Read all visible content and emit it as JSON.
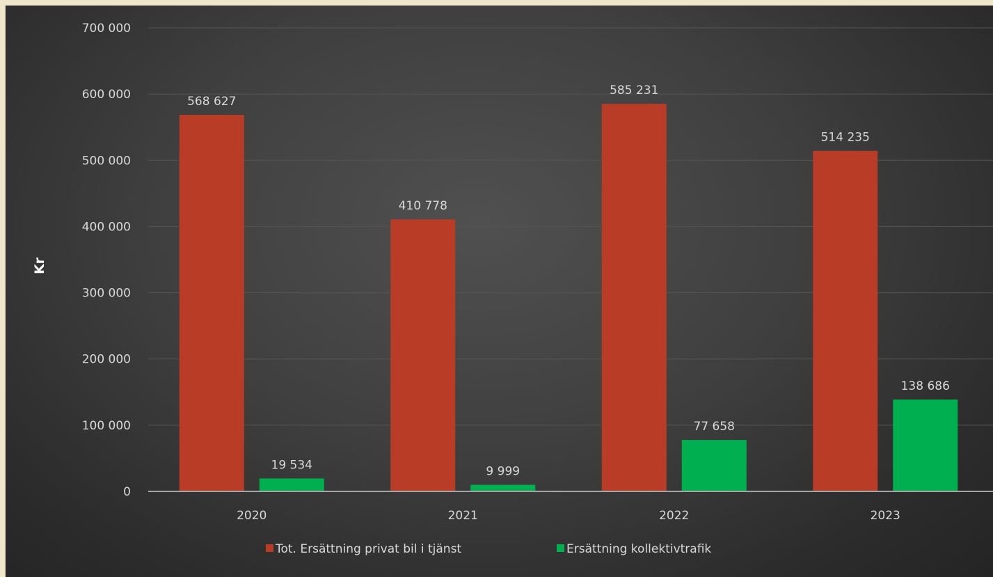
{
  "chart_data": {
    "type": "bar",
    "categories": [
      "2020",
      "2021",
      "2022",
      "2023"
    ],
    "series": [
      {
        "name": "Tot. Ersättning privat bil i tjänst",
        "color": "#b83c26",
        "values": [
          568627,
          410778,
          585231,
          514235
        ],
        "labels": [
          "568 627",
          "410 778",
          "585 231",
          "514 235"
        ]
      },
      {
        "name": "Ersättning kollektivtrafik",
        "color": "#00b050",
        "values": [
          19534,
          9999,
          77658,
          138686
        ],
        "labels": [
          "19 534",
          "9 999",
          "77 658",
          "138 686"
        ]
      }
    ],
    "ylabel": "Kr",
    "ylim": [
      0,
      700000
    ],
    "yticks": [
      0,
      100000,
      200000,
      300000,
      400000,
      500000,
      600000,
      700000
    ],
    "ytick_labels": [
      "0",
      "100 000",
      "200 000",
      "300 000",
      "400 000",
      "500 000",
      "600 000",
      "700 000"
    ],
    "grid": true,
    "legend_position": "bottom"
  }
}
